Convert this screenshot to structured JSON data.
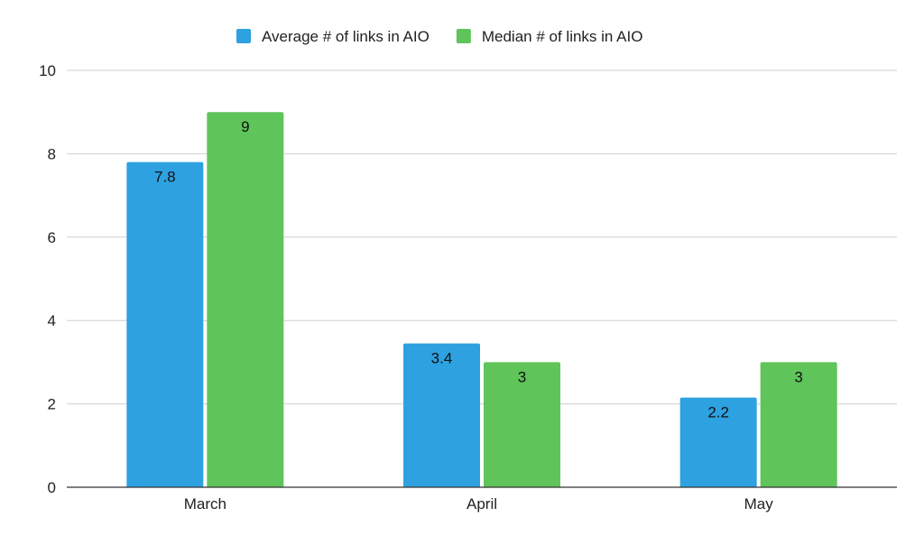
{
  "chart_data": {
    "type": "bar",
    "categories": [
      "March",
      "April",
      "May"
    ],
    "series": [
      {
        "name": "Average # of links in AIO",
        "values": [
          7.8,
          3.45,
          2.15
        ],
        "labels": [
          "7.8",
          "3.4",
          "2.2"
        ],
        "color": "#2EA1E0"
      },
      {
        "name": "Median # of links in AIO",
        "values": [
          9,
          3,
          3
        ],
        "labels": [
          "9",
          "3",
          "3"
        ],
        "color": "#5FC45A"
      }
    ],
    "ylim": [
      0,
      10
    ],
    "yticks": [
      "0",
      "2",
      "4",
      "6",
      "8",
      "10"
    ],
    "title": "",
    "xlabel": "",
    "ylabel": "",
    "grid": true,
    "legend_position": "top-center"
  }
}
